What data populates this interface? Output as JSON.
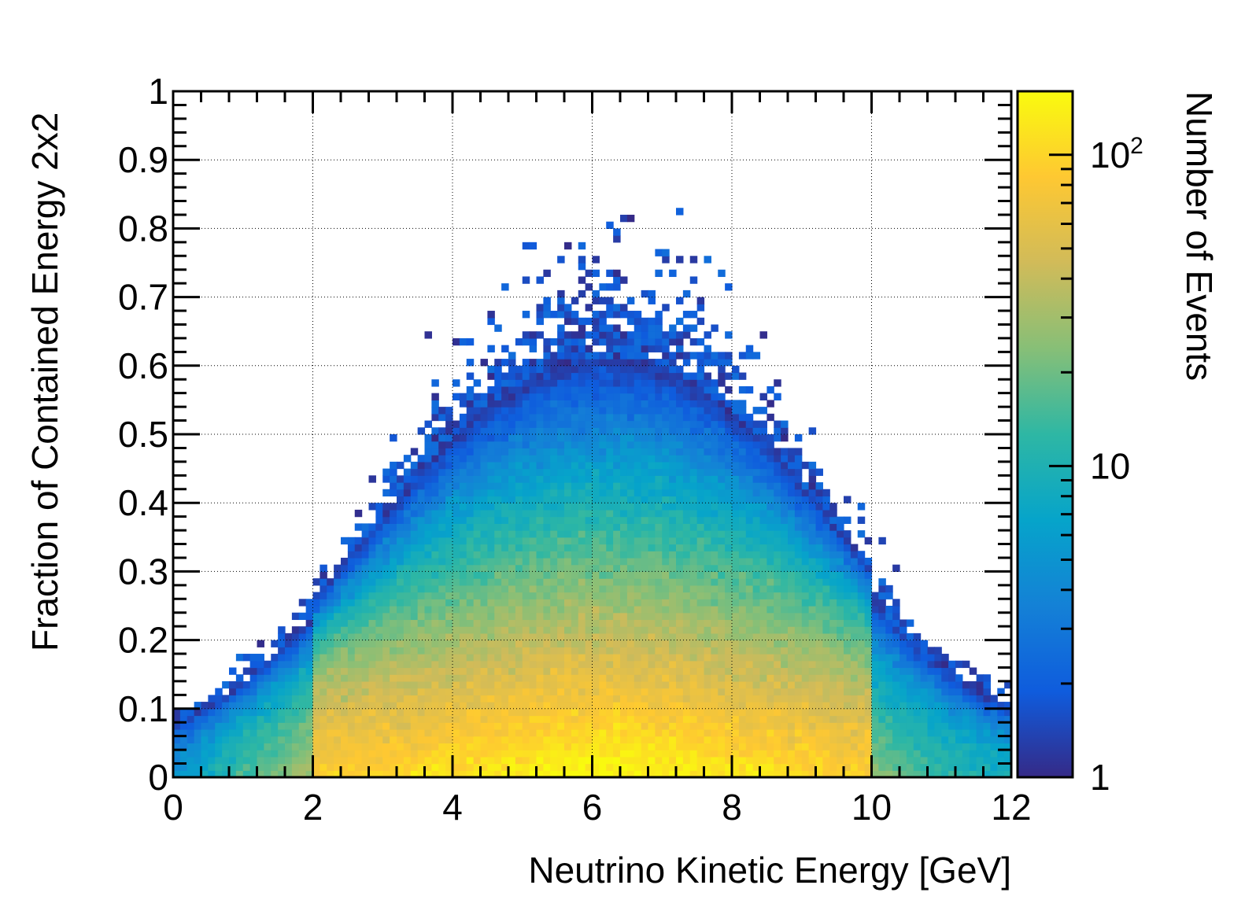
{
  "chart_data": {
    "type": "heatmap",
    "title": "",
    "xlabel": "Neutrino Kinetic Energy [GeV]",
    "ylabel": "Fraction of Contained Energy 2x2",
    "colorbar_label": "Number of Events",
    "xlim": [
      0,
      12
    ],
    "ylim": [
      0,
      1
    ],
    "x_ticks": [
      0,
      2,
      4,
      6,
      8,
      10,
      12
    ],
    "x_tick_labels": [
      "0",
      "2",
      "4",
      "6",
      "8",
      "10",
      "12"
    ],
    "y_ticks": [
      0,
      0.1,
      0.2,
      0.3,
      0.4,
      0.5,
      0.6,
      0.7,
      0.8,
      0.9,
      1
    ],
    "y_tick_labels": [
      "0",
      "0.1",
      "0.2",
      "0.3",
      "0.4",
      "0.5",
      "0.6",
      "0.7",
      "0.8",
      "0.9",
      "1"
    ],
    "z_scale": "log",
    "zlim": [
      1,
      160
    ],
    "z_ticks": [
      1,
      10,
      100
    ],
    "z_tick_labels": [
      {
        "base": "1",
        "sup": ""
      },
      {
        "base": "10",
        "sup": ""
      },
      {
        "base": "10",
        "sup": "2"
      }
    ],
    "grid": true,
    "colormap": [
      "#352a87",
      "#0f5cdd",
      "#1481d6",
      "#06a4ca",
      "#2eb7a4",
      "#87bf77",
      "#d1bb59",
      "#fec832",
      "#f9fb0e"
    ],
    "bins": {
      "x_count": 120,
      "y_count": 100,
      "x_width": 0.1,
      "y_width": 0.01
    },
    "density_model": {
      "peak_events": 160,
      "peak_energy": 6.2,
      "energy_band": [
        2,
        10
      ],
      "decay_fraction": 0.15
    }
  }
}
